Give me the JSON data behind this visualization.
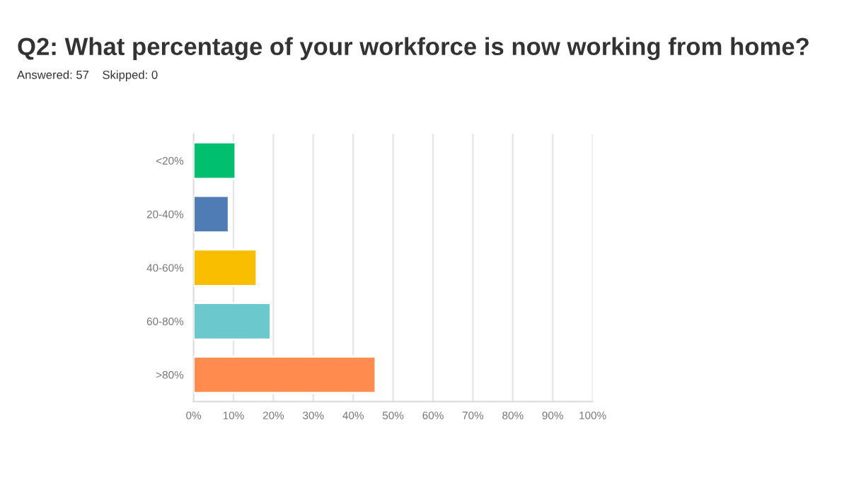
{
  "chart_data": {
    "type": "bar",
    "orientation": "horizontal",
    "title": "Q2: What percentage of your workforce is now working from home?",
    "subtitle": "Answered: 57    Skipped: 0",
    "categories": [
      "<20%",
      "20-40%",
      "40-60%",
      "60-80%",
      ">80%"
    ],
    "values": [
      10.5,
      8.8,
      15.8,
      19.3,
      45.6
    ],
    "colors": [
      "#00bf6f",
      "#507cb6",
      "#f9be00",
      "#6bc8cd",
      "#ff8b4f"
    ],
    "xlim": [
      0,
      100
    ],
    "xticks": [
      {
        "value": 0,
        "label": "0%"
      },
      {
        "value": 10,
        "label": "10%"
      },
      {
        "value": 20,
        "label": "20%"
      },
      {
        "value": 30,
        "label": "30%"
      },
      {
        "value": 40,
        "label": "40%"
      },
      {
        "value": 50,
        "label": "50%"
      },
      {
        "value": 60,
        "label": "60%"
      },
      {
        "value": 70,
        "label": "70%"
      },
      {
        "value": 80,
        "label": "80%"
      },
      {
        "value": 90,
        "label": "90%"
      },
      {
        "value": 100,
        "label": "100%"
      }
    ],
    "grid": "x"
  }
}
